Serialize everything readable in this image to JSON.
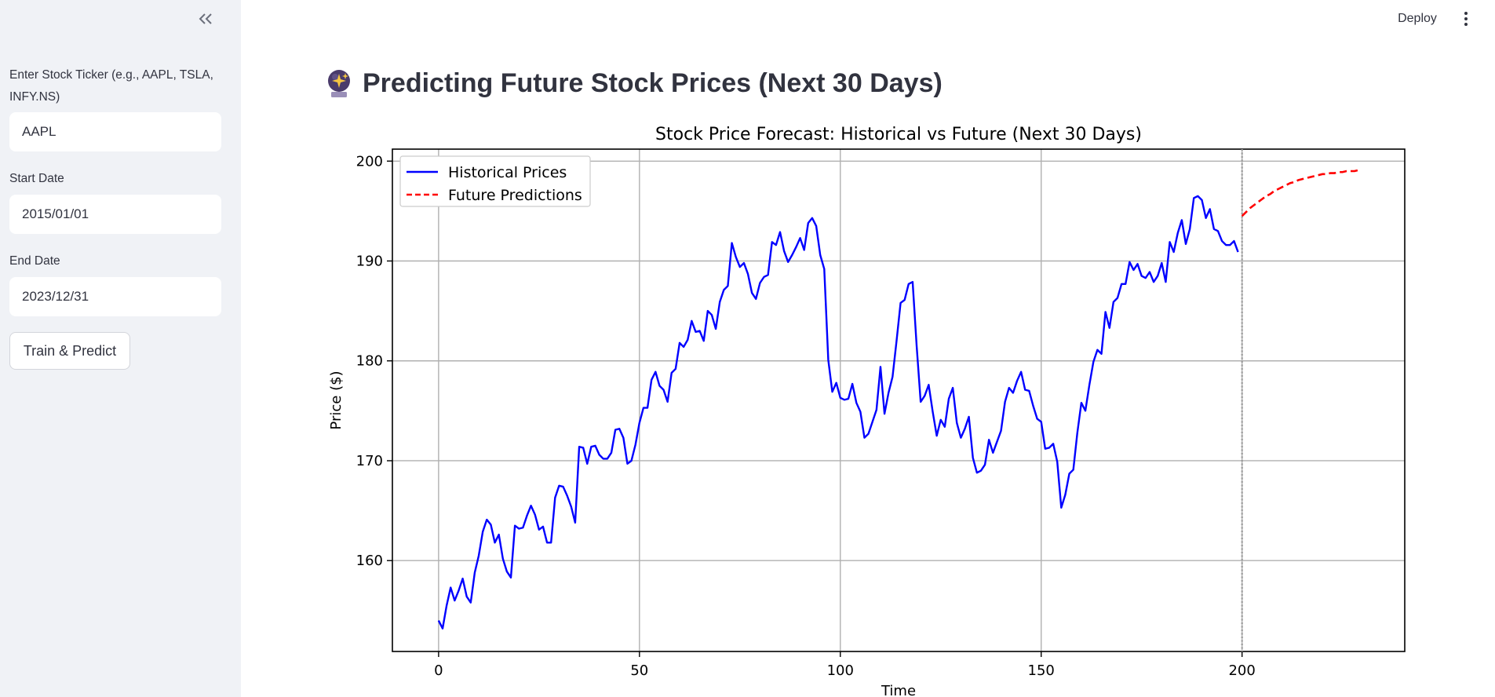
{
  "sidebar": {
    "collapse_icon": "double-chevron-left-icon",
    "ticker": {
      "label": "Enter Stock Ticker (e.g., AAPL, TSLA, INFY.NS)",
      "label_line1": "Enter Stock Ticker (e.g., AAPL, TSLA,",
      "label_line2": "INFY.NS)",
      "value": "AAPL"
    },
    "start_date": {
      "label": "Start Date",
      "value": "2015/01/01"
    },
    "end_date": {
      "label": "End Date",
      "value": "2023/12/31"
    },
    "train_button": "Train & Predict"
  },
  "header": {
    "deploy_label": "Deploy",
    "menu_icon": "vertical-ellipsis-icon"
  },
  "main": {
    "title_icon": "crystal-ball-icon",
    "title": "Predicting Future Stock Prices (Next 30 Days)"
  },
  "chart_data": {
    "type": "line",
    "title": "Stock Price Forecast: Historical vs Future (Next 30 Days)",
    "xlabel": "Time",
    "ylabel": "Price ($)",
    "xlim": [
      -11.5,
      240.5
    ],
    "ylim": [
      150.9,
      201.2
    ],
    "xticks": [
      0,
      50,
      100,
      150,
      200
    ],
    "yticks": [
      160,
      170,
      180,
      190,
      200
    ],
    "grid": true,
    "legend_position": "top-left",
    "vline_x": 200,
    "series": [
      {
        "name": "Historical Prices",
        "color": "#0000ff",
        "style": "solid",
        "x_start": 0,
        "values": [
          154.0,
          153.2,
          155.5,
          157.3,
          156.0,
          157.0,
          158.2,
          156.4,
          155.8,
          158.8,
          160.5,
          162.9,
          164.1,
          163.6,
          161.8,
          162.6,
          160.2,
          158.9,
          158.3,
          163.5,
          163.2,
          163.3,
          164.5,
          165.5,
          164.6,
          163.1,
          163.4,
          161.8,
          161.8,
          166.3,
          167.5,
          167.4,
          166.5,
          165.4,
          163.8,
          171.4,
          171.3,
          169.7,
          171.4,
          171.5,
          170.6,
          170.2,
          170.2,
          170.8,
          173.1,
          173.2,
          172.3,
          169.7,
          170.0,
          171.6,
          173.8,
          175.3,
          175.3,
          178.1,
          178.9,
          177.5,
          177.1,
          175.9,
          178.8,
          179.2,
          181.8,
          181.4,
          182.1,
          184.0,
          182.9,
          183.0,
          182.0,
          185.0,
          184.6,
          183.2,
          185.9,
          187.1,
          187.5,
          191.8,
          190.4,
          189.4,
          189.8,
          188.7,
          186.8,
          186.2,
          187.8,
          188.4,
          188.6,
          191.9,
          191.6,
          192.9,
          191.0,
          189.9,
          190.6,
          191.4,
          192.3,
          191.1,
          193.8,
          194.3,
          193.5,
          190.6,
          189.2,
          180.1,
          176.9,
          177.8,
          176.3,
          176.1,
          176.2,
          177.7,
          175.8,
          174.9,
          172.3,
          172.7,
          173.9,
          175.1,
          179.4,
          174.7,
          176.8,
          178.4,
          182.0,
          185.8,
          186.1,
          187.7,
          187.9,
          181.5,
          175.9,
          176.5,
          177.6,
          174.9,
          172.5,
          174.1,
          173.4,
          176.2,
          177.3,
          173.8,
          172.3,
          173.2,
          174.4,
          170.3,
          168.8,
          169.0,
          169.6,
          172.1,
          170.8,
          171.9,
          173.0,
          175.9,
          177.3,
          176.8,
          178.0,
          178.9,
          177.1,
          177.0,
          175.5,
          174.2,
          173.9,
          171.2,
          171.3,
          171.7,
          169.9,
          165.3,
          166.6,
          168.7,
          169.1,
          172.8,
          175.8,
          175.0,
          177.6,
          179.9,
          181.1,
          180.7,
          184.9,
          183.3,
          185.9,
          186.3,
          187.7,
          187.7,
          189.9,
          189.1,
          189.7,
          188.5,
          188.3,
          188.9,
          187.9,
          188.5,
          189.8,
          187.9,
          191.9,
          190.9,
          192.8,
          194.1,
          191.7,
          193.2,
          196.3,
          196.5,
          196.1,
          194.3,
          195.2,
          193.2,
          193.0,
          192.0,
          191.6,
          191.6,
          192.0,
          190.9
        ]
      },
      {
        "name": "Future Predictions",
        "color": "#ff0000",
        "style": "dashed",
        "x_start": 200,
        "values": [
          194.5,
          194.9,
          195.3,
          195.6,
          195.9,
          196.2,
          196.5,
          196.7,
          197.0,
          197.2,
          197.4,
          197.6,
          197.8,
          197.9,
          198.1,
          198.2,
          198.3,
          198.4,
          198.5,
          198.6,
          198.7,
          198.7,
          198.8,
          198.8,
          198.9,
          198.9,
          199.0,
          199.0,
          199.0,
          199.1
        ]
      }
    ]
  }
}
